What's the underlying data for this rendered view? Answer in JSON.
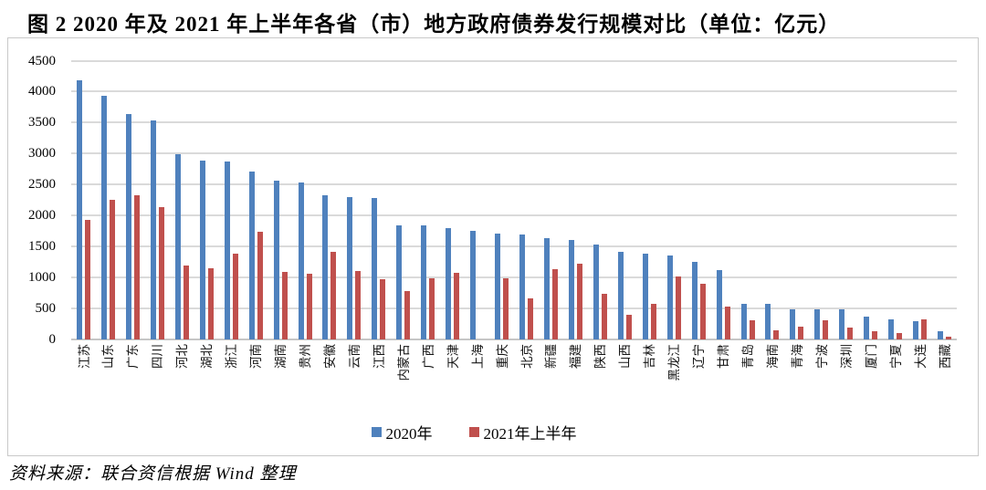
{
  "figure": {
    "title": "图 2  2020 年及 2021 年上半年各省（市）地方政府债券发行规模对比（单位：亿元）",
    "source_note": "资料来源：联合资信根据 Wind 整理"
  },
  "colors": {
    "series_2020": "#4F81BD",
    "series_2021h1": "#C0504D",
    "gridline": "#DADADA",
    "axis": "#C6C6C6",
    "border": "#C9C9C9",
    "text": "#000000"
  },
  "chart_data": {
    "type": "bar",
    "title": "2020 年及 2021 年上半年各省（市）地方政府债券发行规模对比",
    "unit": "亿元",
    "categories": [
      "江苏",
      "山东",
      "广东",
      "四川",
      "河北",
      "湖北",
      "浙江",
      "河南",
      "湖南",
      "贵州",
      "安徽",
      "云南",
      "江西",
      "内蒙古",
      "广西",
      "天津",
      "上海",
      "重庆",
      "北京",
      "新疆",
      "福建",
      "陕西",
      "山西",
      "吉林",
      "黑龙江",
      "辽宁",
      "甘肃",
      "青岛",
      "海南",
      "青海",
      "宁波",
      "深圳",
      "厦门",
      "宁夏",
      "大连",
      "西藏"
    ],
    "series": [
      {
        "name": "2020年",
        "color": "#4F81BD",
        "values": [
          4180,
          3930,
          3640,
          3535,
          2990,
          2885,
          2870,
          2705,
          2560,
          2530,
          2335,
          2295,
          2285,
          1840,
          1840,
          1805,
          1750,
          1705,
          1690,
          1640,
          1610,
          1540,
          1420,
          1390,
          1360,
          1255,
          1125,
          580,
          570,
          490,
          485,
          480,
          370,
          330,
          295,
          130
        ]
      },
      {
        "name": "2021年上半年",
        "color": "#C0504D",
        "values": [
          1935,
          2250,
          2330,
          2140,
          1190,
          1145,
          1390,
          1740,
          1095,
          1065,
          1415,
          1110,
          980,
          785,
          985,
          1080,
          0,
          985,
          670,
          1140,
          1230,
          735,
          395,
          570,
          1015,
          905,
          525,
          315,
          150,
          210,
          305,
          195,
          135,
          100,
          320,
          45
        ]
      }
    ],
    "ylim": [
      0,
      4500
    ],
    "yticks": [
      0,
      500,
      1000,
      1500,
      2000,
      2500,
      3000,
      3500,
      4000,
      4500
    ],
    "grid": true,
    "legend_position": "bottom"
  }
}
